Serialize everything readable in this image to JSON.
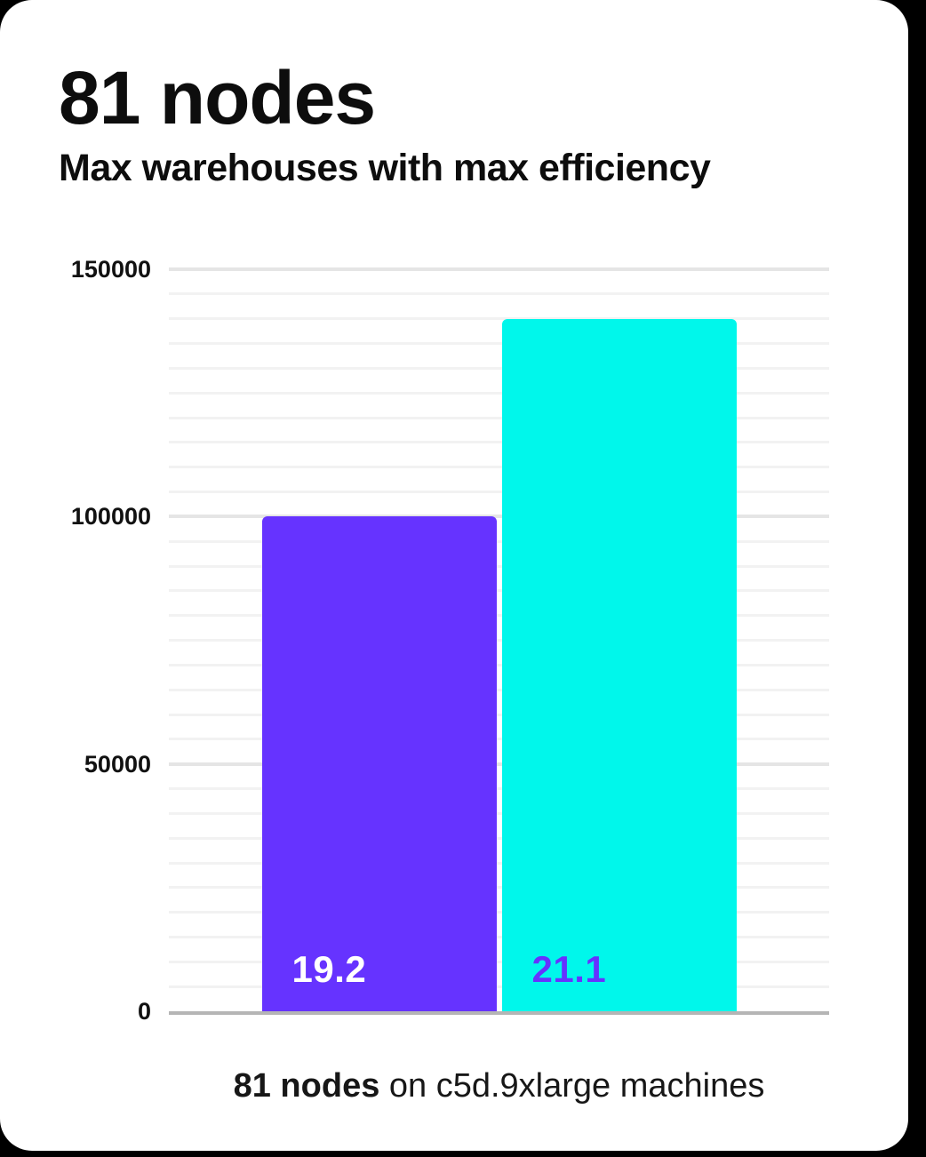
{
  "chart_data": {
    "type": "bar",
    "title": "81 nodes",
    "subtitle": "Max warehouses with max efficiency",
    "categories": [
      "19.2",
      "21.1"
    ],
    "values": [
      100000,
      140000
    ],
    "bar_value_labels": [
      "19.2",
      "21.1"
    ],
    "bar_colors": [
      "#6633ff",
      "#00f7eb"
    ],
    "bar_label_colors": [
      "#ffffff",
      "#6633ff"
    ],
    "xlabel": "",
    "ylabel": "",
    "ylim": [
      0,
      150000
    ],
    "ytick_values": [
      0,
      50000,
      100000,
      150000
    ],
    "ytick_labels": [
      "0",
      "50000",
      "100000",
      "150000"
    ],
    "minor_grid_step": 5000,
    "grid": true,
    "legend": false,
    "caption_bold": "81 nodes",
    "caption_rest": " on c5d.9xlarge machines",
    "caption_full": "81 nodes on c5d.9xlarge machines"
  },
  "colors": {
    "background": "#000000",
    "card": "#ffffff",
    "heading_text": "#0d0d0d",
    "bar_purple": "#6633ff",
    "bar_cyan": "#00f7eb",
    "grid_minor": "#f2f2f2",
    "grid_major": "#e5e5e5",
    "axis_line": "#b5b5b5",
    "tick_text": "#111111"
  }
}
